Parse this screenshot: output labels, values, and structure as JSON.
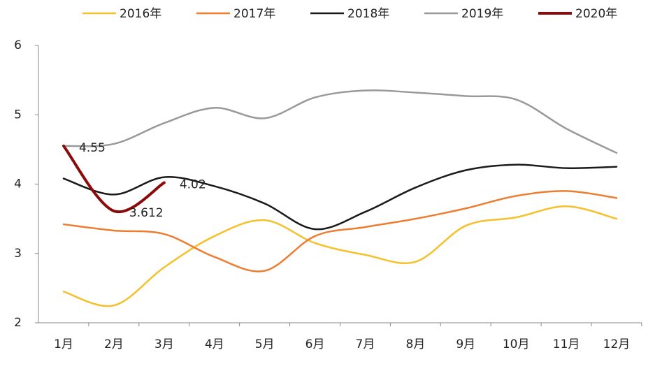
{
  "chart_data": {
    "type": "line",
    "categories": [
      "1月",
      "2月",
      "3月",
      "4月",
      "5月",
      "6月",
      "7月",
      "8月",
      "9月",
      "10月",
      "11月",
      "12月"
    ],
    "series": [
      {
        "name": "2016年",
        "color": "#f5c02a",
        "values": [
          2.45,
          2.25,
          2.8,
          3.25,
          3.48,
          3.15,
          2.98,
          2.88,
          3.4,
          3.52,
          3.68,
          3.5
        ]
      },
      {
        "name": "2017年",
        "color": "#ed7d31",
        "values": [
          3.42,
          3.33,
          3.28,
          2.95,
          2.75,
          3.25,
          3.38,
          3.5,
          3.65,
          3.83,
          3.9,
          3.8
        ]
      },
      {
        "name": "2018年",
        "color": "#1a1a1a",
        "values": [
          4.08,
          3.85,
          4.1,
          3.97,
          3.72,
          3.35,
          3.6,
          3.95,
          4.2,
          4.28,
          4.23,
          4.25
        ]
      },
      {
        "name": "2019年",
        "color": "#999999",
        "values": [
          4.55,
          4.58,
          4.88,
          5.1,
          4.95,
          5.25,
          5.35,
          5.32,
          5.27,
          5.22,
          4.8,
          4.45
        ]
      },
      {
        "name": "2020年",
        "color": "#8b0a0a",
        "values": [
          4.55,
          3.612,
          4.02,
          null,
          null,
          null,
          null,
          null,
          null,
          null,
          null,
          null
        ],
        "labels": true
      }
    ],
    "ylim": [
      2,
      6
    ],
    "yticks": [
      2,
      3,
      4,
      5,
      6
    ],
    "grid": false,
    "legend": "top"
  }
}
